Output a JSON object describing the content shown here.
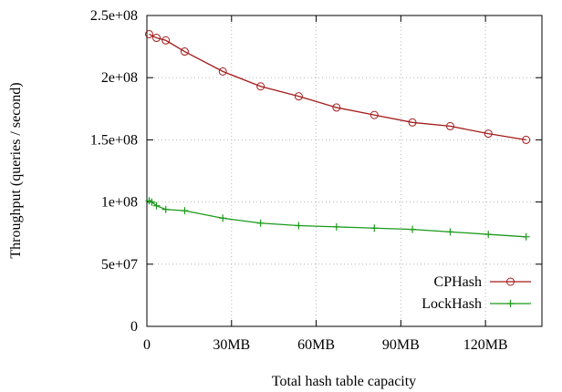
{
  "chart_data": {
    "type": "line",
    "xlabel": "Total hash table capacity",
    "ylabel": "Throughput (queries / second)",
    "xlim": [
      0,
      140
    ],
    "ylim": [
      0,
      250000000
    ],
    "xticks": [
      {
        "value": 0,
        "label": "0"
      },
      {
        "value": 30,
        "label": "30MB"
      },
      {
        "value": 60,
        "label": "60MB"
      },
      {
        "value": 90,
        "label": "90MB"
      },
      {
        "value": 120,
        "label": "120MB"
      }
    ],
    "yticks": [
      {
        "value": 0,
        "label": "0"
      },
      {
        "value": 50000000,
        "label": "5e+07"
      },
      {
        "value": 100000000,
        "label": "1e+08"
      },
      {
        "value": 150000000,
        "label": "1.5e+08"
      },
      {
        "value": 200000000,
        "label": "2e+08"
      },
      {
        "value": 250000000,
        "label": "2.5e+08"
      }
    ],
    "grid": true,
    "legend_position": "bottom-right",
    "series": [
      {
        "name": "CPHash",
        "color": "#a31a1a",
        "marker": "circle",
        "x": [
          0.8,
          3.4,
          6.7,
          13.4,
          26.9,
          40.3,
          53.8,
          67.2,
          80.6,
          94.1,
          107.5,
          121.0,
          134.4
        ],
        "y": [
          235000000,
          232000000,
          230000000,
          221000000,
          205000000,
          193000000,
          185000000,
          176000000,
          170000000,
          164000000,
          161000000,
          155000000,
          150000000
        ]
      },
      {
        "name": "LockHash",
        "color": "#1a9a1a",
        "marker": "plus",
        "x": [
          0.8,
          1.7,
          3.4,
          6.7,
          13.4,
          26.9,
          40.3,
          53.8,
          67.2,
          80.6,
          94.1,
          107.5,
          121.0,
          134.4
        ],
        "y": [
          101000000,
          100000000,
          97000000,
          94000000,
          93000000,
          87000000,
          83000000,
          81000000,
          80000000,
          79000000,
          78000000,
          76000000,
          74000000,
          72000000
        ]
      }
    ]
  }
}
